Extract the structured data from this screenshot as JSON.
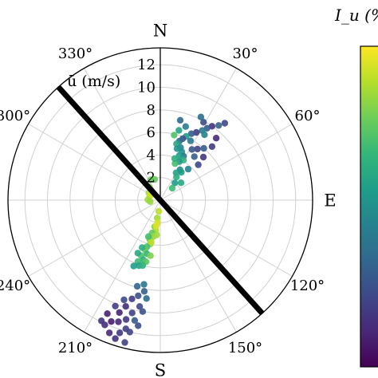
{
  "chart_data": {
    "type": "scatter",
    "coordinate_system": "polar",
    "radial_axis": {
      "label": "ū (m/s)",
      "ticks": [
        2,
        4,
        6,
        8,
        10,
        12
      ],
      "range": [
        0,
        13.5
      ]
    },
    "angular_axis": {
      "direction": "clockwise",
      "zero": "north",
      "cardinal_labels": [
        {
          "deg": 0,
          "text": "N"
        },
        {
          "deg": 90,
          "text": "E"
        },
        {
          "deg": 180,
          "text": "S"
        }
      ],
      "degree_labels": [
        {
          "deg": 30,
          "text": "30°"
        },
        {
          "deg": 60,
          "text": "60°"
        },
        {
          "deg": 120,
          "text": "120°"
        },
        {
          "deg": 150,
          "text": "150°"
        },
        {
          "deg": 210,
          "text": "210°"
        },
        {
          "deg": 240,
          "text": "240°"
        },
        {
          "deg": 300,
          "text": "300°"
        },
        {
          "deg": 330,
          "text": "330°"
        }
      ]
    },
    "reference_line": {
      "deg_a": 318,
      "deg_b": 138
    },
    "colorbar": {
      "label": "I_u (%)",
      "colormap": "viridis",
      "position": "right"
    },
    "grid": true,
    "colors": {
      "viridis": [
        "#440154",
        "#482878",
        "#3e4989",
        "#31688e",
        "#26828e",
        "#1f9e89",
        "#35b779",
        "#6ece58",
        "#b5de2b",
        "#fde725"
      ]
    },
    "points": [
      {
        "dir": 40,
        "speed": 8.9,
        "iu": 0.22
      },
      {
        "dir": 38,
        "speed": 8.4,
        "iu": 0.32
      },
      {
        "dir": 35,
        "speed": 8.0,
        "iu": 0.15
      },
      {
        "dir": 33,
        "speed": 7.6,
        "iu": 0.28
      },
      {
        "dir": 31,
        "speed": 7.2,
        "iu": 0.4
      },
      {
        "dir": 28,
        "speed": 6.8,
        "iu": 0.18
      },
      {
        "dir": 25,
        "speed": 6.5,
        "iu": 0.3
      },
      {
        "dir": 22,
        "speed": 6.1,
        "iu": 0.55
      },
      {
        "dir": 20,
        "speed": 5.8,
        "iu": 0.25
      },
      {
        "dir": 18,
        "speed": 5.5,
        "iu": 0.35
      },
      {
        "dir": 16,
        "speed": 5.2,
        "iu": 0.6
      },
      {
        "dir": 21,
        "speed": 5.0,
        "iu": 0.45
      },
      {
        "dir": 24,
        "speed": 4.7,
        "iu": 0.5
      },
      {
        "dir": 28,
        "speed": 4.4,
        "iu": 0.38
      },
      {
        "dir": 30,
        "speed": 4.1,
        "iu": 0.65
      },
      {
        "dir": 26,
        "speed": 3.8,
        "iu": 0.52
      },
      {
        "dir": 22,
        "speed": 3.5,
        "iu": 0.7
      },
      {
        "dir": 33,
        "speed": 3.2,
        "iu": 0.48
      },
      {
        "dir": 30,
        "speed": 2.8,
        "iu": 0.58
      },
      {
        "dir": 35,
        "speed": 2.5,
        "iu": 0.62
      },
      {
        "dir": 40,
        "speed": 2.0,
        "iu": 0.55
      },
      {
        "dir": 45,
        "speed": 1.5,
        "iu": 0.68
      },
      {
        "dir": 36,
        "speed": 5.6,
        "iu": 0.2
      },
      {
        "dir": 40,
        "speed": 6.0,
        "iu": 0.3
      },
      {
        "dir": 44,
        "speed": 6.6,
        "iu": 0.18
      },
      {
        "dir": 34,
        "speed": 7.0,
        "iu": 0.45
      },
      {
        "dir": 29,
        "speed": 7.9,
        "iu": 0.24
      },
      {
        "dir": 26,
        "speed": 8.2,
        "iu": 0.36
      },
      {
        "dir": 19,
        "speed": 6.9,
        "iu": 0.42
      },
      {
        "dir": 15,
        "speed": 6.4,
        "iu": 0.58
      },
      {
        "dir": 12,
        "speed": 5.9,
        "iu": 0.72
      },
      {
        "dir": 14,
        "speed": 7.3,
        "iu": 0.34
      },
      {
        "dir": 42,
        "speed": 7.4,
        "iu": 0.12
      },
      {
        "dir": 38,
        "speed": 4.9,
        "iu": 0.3
      },
      {
        "dir": 32,
        "speed": 5.3,
        "iu": 0.27
      },
      {
        "dir": 27,
        "speed": 5.9,
        "iu": 0.4
      },
      {
        "dir": 23,
        "speed": 4.3,
        "iu": 0.56
      },
      {
        "dir": 19,
        "speed": 3.9,
        "iu": 0.63
      },
      {
        "dir": 42,
        "speed": 3.7,
        "iu": 0.44
      },
      {
        "dir": 47,
        "speed": 4.6,
        "iu": 0.22
      },
      {
        "dir": 37,
        "speed": 3.1,
        "iu": 0.54
      },
      {
        "dir": 50,
        "speed": 2.4,
        "iu": 0.6
      },
      {
        "dir": 18,
        "speed": 4.8,
        "iu": 0.52
      },
      {
        "dir": 45,
        "speed": 5.4,
        "iu": 0.16
      },
      {
        "dir": 302,
        "speed": 1.2,
        "iu": 0.88
      },
      {
        "dir": 290,
        "speed": 1.0,
        "iu": 0.92
      },
      {
        "dir": 320,
        "speed": 1.5,
        "iu": 0.82
      },
      {
        "dir": 272,
        "speed": 1.1,
        "iu": 0.86
      },
      {
        "dir": 335,
        "speed": 2.0,
        "iu": 0.78
      },
      {
        "dir": 312,
        "speed": 0.8,
        "iu": 0.9
      },
      {
        "dir": 262,
        "speed": 0.9,
        "iu": 0.84
      },
      {
        "dir": 345,
        "speed": 1.9,
        "iu": 0.76
      },
      {
        "dir": 188,
        "speed": 1.0,
        "iu": 0.9
      },
      {
        "dir": 190,
        "speed": 1.6,
        "iu": 0.86
      },
      {
        "dir": 187,
        "speed": 2.0,
        "iu": 0.93
      },
      {
        "dir": 192,
        "speed": 2.4,
        "iu": 0.8
      },
      {
        "dir": 189,
        "speed": 2.7,
        "iu": 0.88
      },
      {
        "dir": 194,
        "speed": 3.0,
        "iu": 0.75
      },
      {
        "dir": 191,
        "speed": 3.3,
        "iu": 0.84
      },
      {
        "dir": 195,
        "speed": 3.6,
        "iu": 0.78
      },
      {
        "dir": 193,
        "speed": 4.0,
        "iu": 0.82
      },
      {
        "dir": 196,
        "speed": 4.3,
        "iu": 0.7
      },
      {
        "dir": 197,
        "speed": 4.6,
        "iu": 0.76
      },
      {
        "dir": 194,
        "speed": 4.9,
        "iu": 0.66
      },
      {
        "dir": 199,
        "speed": 5.2,
        "iu": 0.72
      },
      {
        "dir": 196,
        "speed": 5.5,
        "iu": 0.63
      },
      {
        "dir": 200,
        "speed": 5.8,
        "iu": 0.68
      },
      {
        "dir": 198,
        "speed": 6.1,
        "iu": 0.58
      },
      {
        "dir": 192,
        "speed": 3.8,
        "iu": 0.9
      },
      {
        "dir": 198,
        "speed": 3.4,
        "iu": 0.7
      },
      {
        "dir": 201,
        "speed": 4.5,
        "iu": 0.62
      },
      {
        "dir": 190,
        "speed": 5.0,
        "iu": 0.8
      },
      {
        "dir": 193,
        "speed": 5.6,
        "iu": 0.74
      },
      {
        "dir": 202,
        "speed": 6.3,
        "iu": 0.55
      },
      {
        "dir": 189,
        "speed": 2.3,
        "iu": 0.95
      },
      {
        "dir": 186,
        "speed": 3.1,
        "iu": 0.86
      },
      {
        "dir": 203,
        "speed": 5.1,
        "iu": 0.6
      },
      {
        "dir": 195,
        "speed": 6.0,
        "iu": 0.64
      },
      {
        "dir": 190,
        "speed": 8.2,
        "iu": 0.3
      },
      {
        "dir": 193,
        "speed": 8.7,
        "iu": 0.25
      },
      {
        "dir": 196,
        "speed": 9.1,
        "iu": 0.18
      },
      {
        "dir": 191,
        "speed": 9.6,
        "iu": 0.22
      },
      {
        "dir": 198,
        "speed": 9.9,
        "iu": 0.14
      },
      {
        "dir": 194,
        "speed": 10.3,
        "iu": 0.2
      },
      {
        "dir": 200,
        "speed": 10.6,
        "iu": 0.1
      },
      {
        "dir": 196,
        "speed": 11.0,
        "iu": 0.16
      },
      {
        "dir": 192,
        "speed": 10.9,
        "iu": 0.28
      },
      {
        "dir": 199,
        "speed": 11.4,
        "iu": 0.12
      },
      {
        "dir": 195,
        "speed": 11.8,
        "iu": 0.19
      },
      {
        "dir": 202,
        "speed": 11.6,
        "iu": 0.08
      },
      {
        "dir": 190,
        "speed": 11.3,
        "iu": 0.24
      },
      {
        "dir": 204,
        "speed": 12.1,
        "iu": 0.13
      },
      {
        "dir": 197,
        "speed": 12.3,
        "iu": 0.17
      },
      {
        "dir": 201,
        "speed": 12.6,
        "iu": 0.11
      },
      {
        "dir": 193,
        "speed": 12.0,
        "iu": 0.21
      },
      {
        "dir": 206,
        "speed": 11.9,
        "iu": 0.15
      },
      {
        "dir": 188,
        "speed": 8.8,
        "iu": 0.35
      },
      {
        "dir": 203,
        "speed": 10.2,
        "iu": 0.19
      },
      {
        "dir": 189,
        "speed": 10.0,
        "iu": 0.26
      },
      {
        "dir": 200,
        "speed": 9.4,
        "iu": 0.23
      },
      {
        "dir": 205,
        "speed": 11.1,
        "iu": 0.09
      },
      {
        "dir": 198,
        "speed": 12.9,
        "iu": 0.14
      },
      {
        "dir": 194,
        "speed": 13.0,
        "iu": 0.2
      },
      {
        "dir": 191,
        "speed": 7.6,
        "iu": 0.4
      },
      {
        "dir": 195,
        "speed": 7.9,
        "iu": 0.33
      }
    ]
  }
}
